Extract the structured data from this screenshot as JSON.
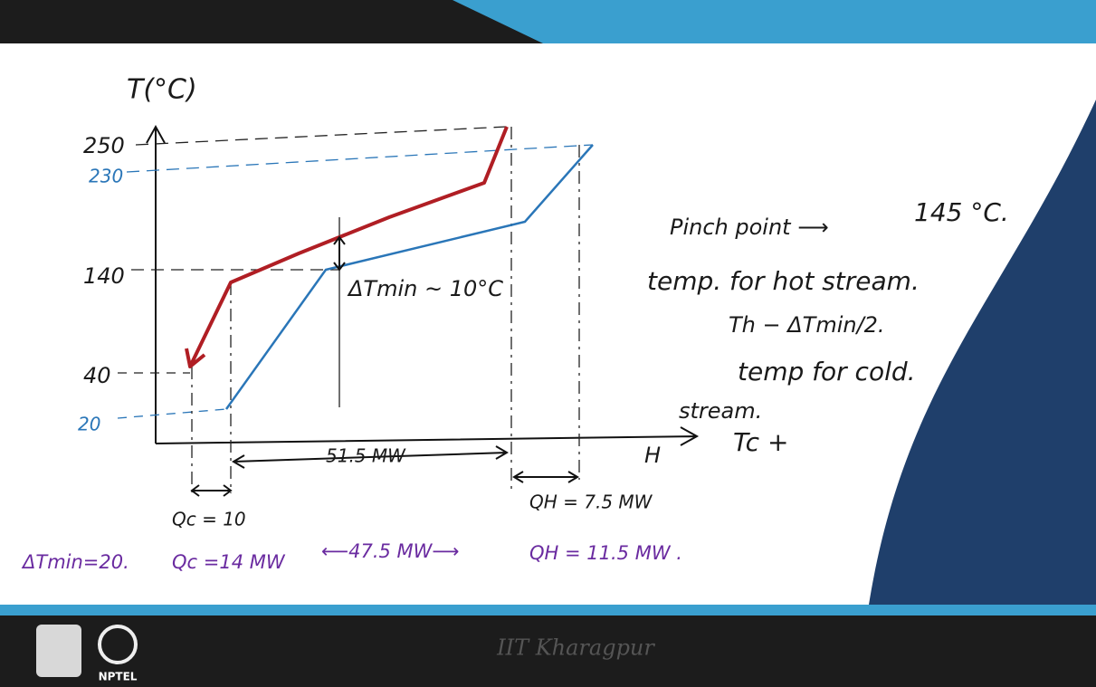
{
  "diagram": {
    "y_axis_label": "T(°C)",
    "x_axis_label": "H",
    "y_ticks": [
      "250",
      "230",
      "140",
      "40",
      "20"
    ],
    "annotations": {
      "delta_t_min": "ΔTmin ~ 10°C",
      "middle_duty": "51.5 MW",
      "hot_utility": "QH = 7.5 MW",
      "cold_utility": "Qc = 10"
    },
    "notes": {
      "pinch_label": "Pinch point ⟶",
      "pinch_value": "145 °C.",
      "hot_line": "temp. for hot stream.",
      "hot_formula": "Th − ΔTmin/2.",
      "cold_line": "temp for cold.",
      "cold_line_2": "stream.",
      "cold_formula": "Tc +",
      "fraction_top": "ΔTmin",
      "fraction_bottom": "2."
    },
    "second_case": {
      "delta_t_min": "ΔTmin=20.",
      "cold_utility": "Qc =14 MW",
      "middle_duty": "⟵47.5 MW⟶",
      "hot_utility": "QH = 11.5 MW ."
    },
    "footer": {
      "institute": "IIT Kharagpur",
      "logo_text": "NPTEL"
    }
  }
}
